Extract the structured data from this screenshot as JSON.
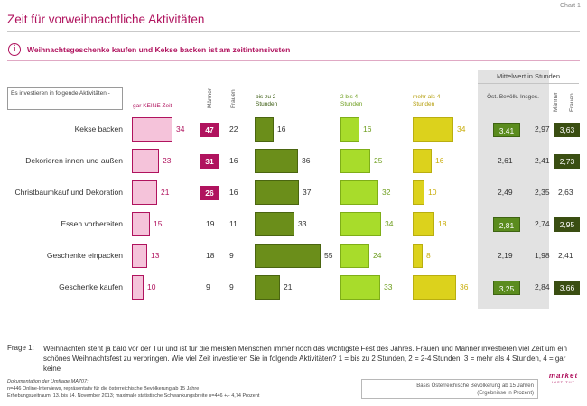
{
  "chart_label": "Chart 1",
  "title": "Zeit für vorweihnachtliche Aktivitäten",
  "subtitle": "Weihnachtsgeschenke kaufen und Kekse backen ist am zeitintensivsten",
  "info_icon": "i",
  "mean_header": "Mittelwert in Stunden",
  "legend_text": "Es investieren in folgende Aktivitäten -",
  "col_none": "gar KEINE Zeit",
  "col_men": "Männer",
  "col_women": "Frauen",
  "col_upto2": "bis zu 2 Stunden",
  "col_2to4": "2 bis 4 Stunden",
  "col_more4": "mehr als 4 Stunden",
  "col_total": "Öst. Bevölk. Insges.",
  "col_mean_men": "Männer",
  "col_mean_women": "Frauen",
  "colors": {
    "magenta": "#b0135e",
    "pink": "#f5c3da",
    "dark_green": "#6b8e1a",
    "light_green": "#a8dc2b",
    "yellow": "#dcd21c",
    "mean_green": "#5b8c1e",
    "mean_dark": "#3a4e12"
  },
  "chart_data": {
    "type": "bar",
    "categories": [
      "Kekse backen",
      "Dekorieren innen und außen",
      "Christbaumkauf und Dekoration",
      "Essen vorbereiten",
      "Geschenke einpacken",
      "Geschenke kaufen"
    ],
    "series": [
      {
        "name": "gar KEINE Zeit",
        "values": [
          34,
          23,
          21,
          15,
          13,
          10
        ]
      },
      {
        "name": "bis zu 2 Stunden",
        "values": [
          16,
          36,
          37,
          33,
          55,
          21
        ]
      },
      {
        "name": "2 bis 4 Stunden",
        "values": [
          16,
          25,
          32,
          34,
          24,
          33
        ]
      },
      {
        "name": "mehr als 4 Stunden",
        "values": [
          34,
          16,
          10,
          18,
          8,
          36
        ]
      }
    ],
    "none_by_gender": {
      "men": [
        "47",
        "31",
        "26",
        "19",
        "18",
        "9"
      ],
      "women": [
        "22",
        "16",
        "16",
        "11",
        "9",
        "9"
      ],
      "men_highlighted": [
        true,
        true,
        true,
        false,
        false,
        false
      ]
    },
    "means": {
      "total": [
        "3,41",
        "2,61",
        "2,49",
        "2,81",
        "2,19",
        "3,25"
      ],
      "total_highlighted": [
        true,
        false,
        false,
        true,
        false,
        true
      ],
      "men": [
        "2,97",
        "2,41",
        "2,35",
        "2,74",
        "1,98",
        "2,84"
      ],
      "women": [
        "3,63",
        "2,73",
        "2,63",
        "2,95",
        "2,41",
        "3,66"
      ],
      "women_highlighted": [
        true,
        true,
        false,
        true,
        false,
        true
      ]
    }
  },
  "frage_label": "Frage 1:",
  "frage_text": "Weihnachten steht ja bald vor der Tür und ist für die meisten Menschen immer noch das wichtigste Fest des Jahres. Frauen und Männer investieren viel Zeit um ein schönes Weihnachtsfest zu verbringen. Wie viel Zeit investieren Sie in folgende Aktivitäten? 1 = bis zu 2 Stunden, 2 = 2-4 Stunden, 3 = mehr als 4 Stunden, 4 = gar keine",
  "doc_title": "Dokumentation der Umfrage MA707:",
  "doc_line1": "n=446 Online-Interviews, repräsentativ für die österreichische Bevölkerung ab 15 Jahre",
  "doc_line2": "Erhebungszeitraum: 13. bis 14. November 2013; maximale statistische Schwankungsbreite n=446 +/- 4,74 Prozent",
  "basis_line1": "Basis Österreichische Bevölkerung ab 15 Jahren",
  "basis_line2": "(Ergebnisse in Prozent)",
  "logo_text": "market",
  "logo_sub": "INSTITUT"
}
